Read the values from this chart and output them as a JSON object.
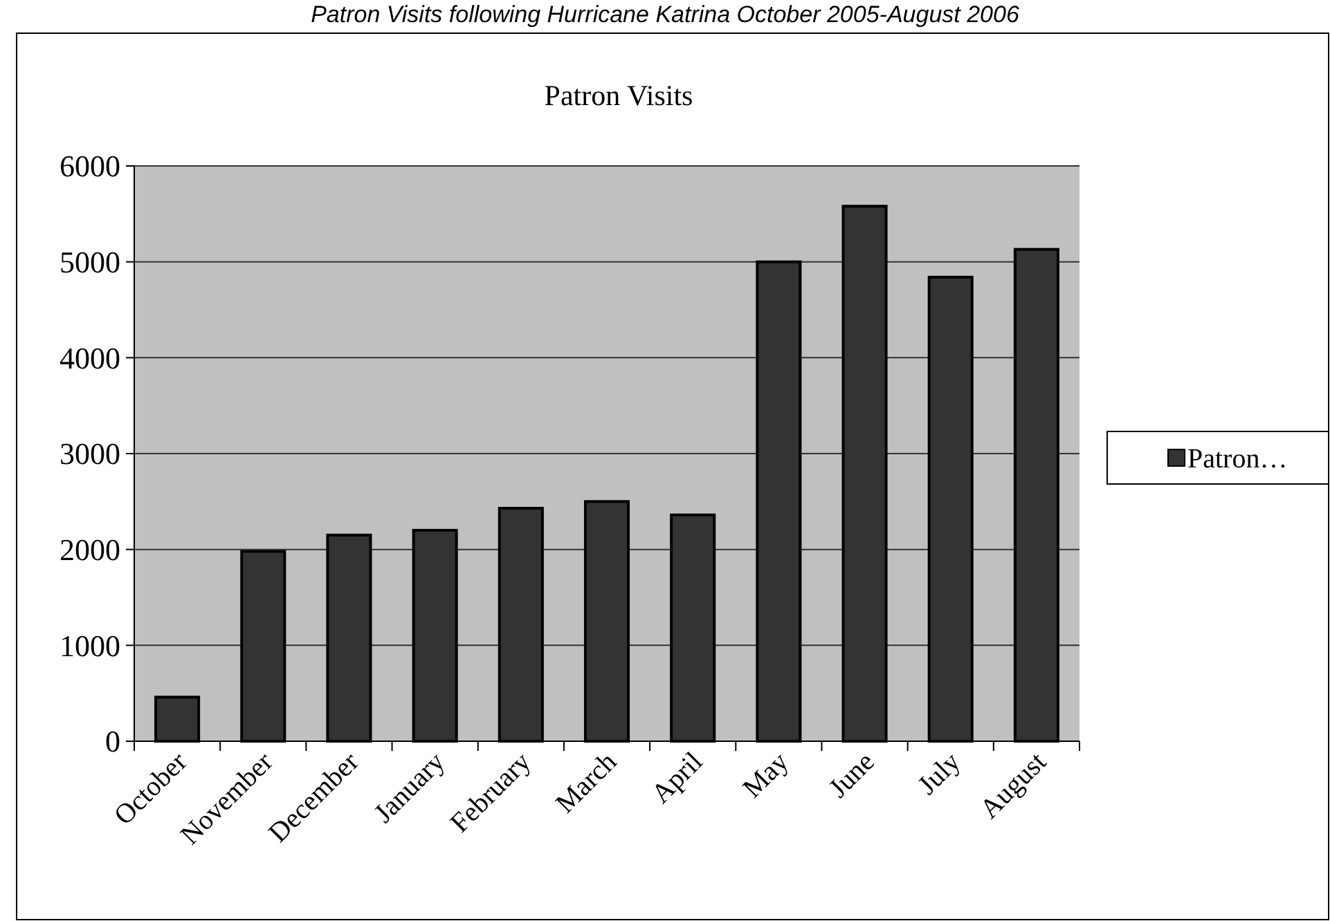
{
  "chart_data": {
    "type": "bar",
    "title": "Patron Visits",
    "annotations": [
      "Patron Visits following Hurricane Katrina October 2005-August 2006"
    ],
    "categories": [
      "October",
      "November",
      "December",
      "January",
      "February",
      "March",
      "April",
      "May",
      "June",
      "July",
      "August"
    ],
    "series": [
      {
        "name": "Patron…",
        "color": "#333333",
        "values": [
          460,
          1980,
          2150,
          2200,
          2430,
          2500,
          2360,
          5000,
          5580,
          4840,
          5130
        ]
      }
    ],
    "ylim": [
      0,
      6000
    ],
    "yticks": [
      0,
      1000,
      2000,
      3000,
      4000,
      5000,
      6000
    ],
    "grid": "y",
    "legend": "right"
  }
}
